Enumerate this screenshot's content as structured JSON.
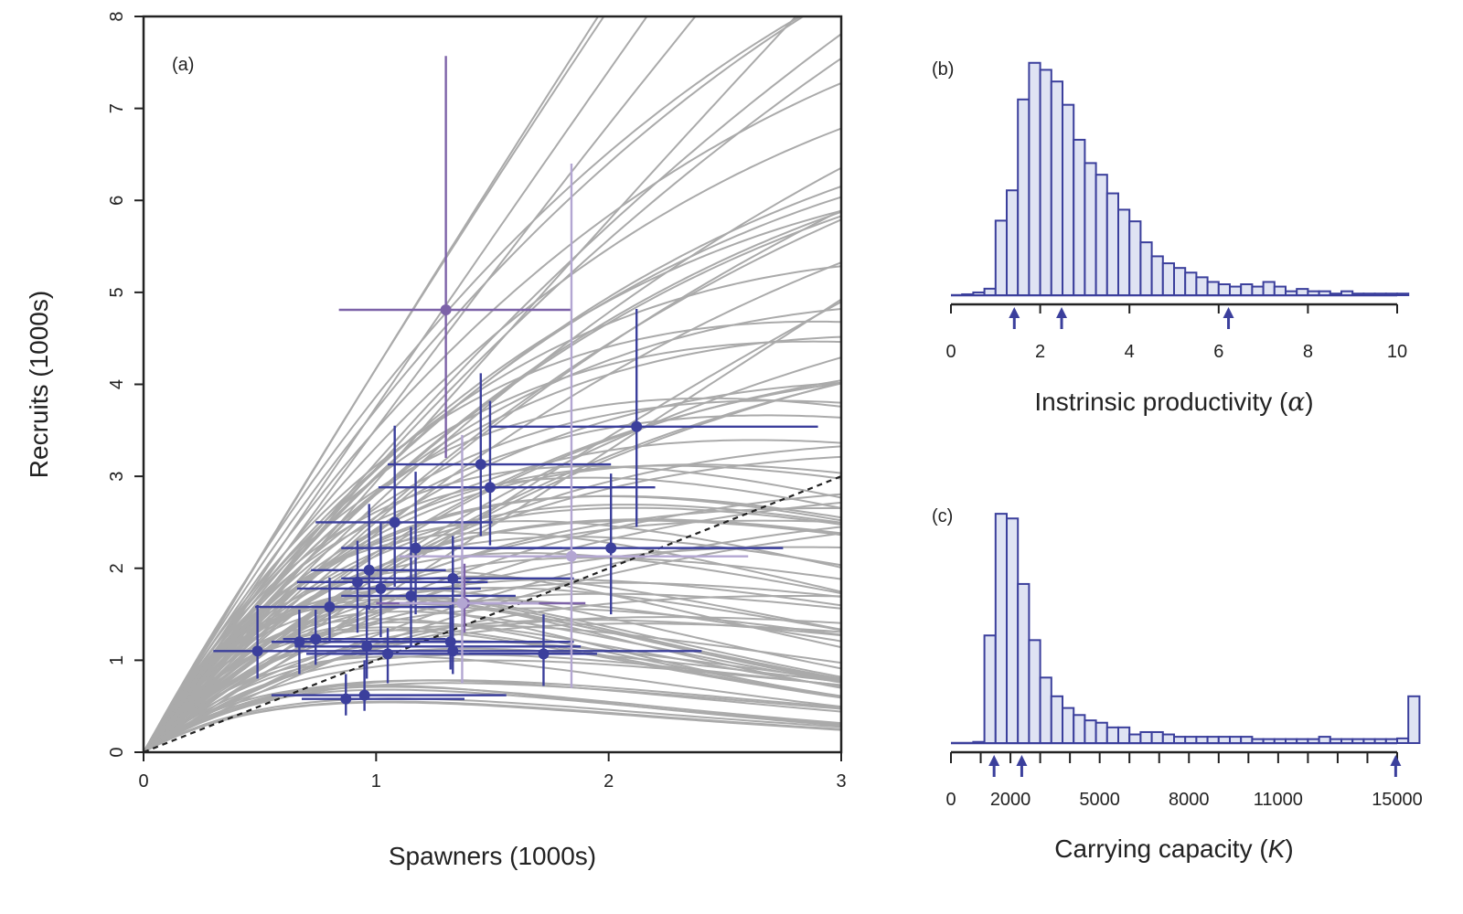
{
  "colors": {
    "curves": "#aaaaaa",
    "points": "#3b3f9c",
    "points_purple": "#7d62a8",
    "points_lilac": "#b3a6d2",
    "hist_fill": "#dfe3f3",
    "hist_stroke": "#3b3f9c",
    "reference_line": "#222222"
  },
  "chart_data": [
    {
      "type": "scatter",
      "panel_label": "(a)",
      "xlabel": "Spawners (1000s)",
      "ylabel": "Recruits (1000s)",
      "xlim": [
        0,
        3
      ],
      "ylim": [
        0,
        8
      ],
      "x_ticks": [
        "0",
        "1",
        "2",
        "3"
      ],
      "y_ticks": [
        "0",
        "1",
        "2",
        "3",
        "4",
        "5",
        "6",
        "7",
        "8"
      ],
      "reference_line": {
        "style": "dashed",
        "slope": 1
      },
      "posterior_curves": {
        "model": "Ricker",
        "count": 100,
        "alpha_range": [
          1.4,
          4.6
        ],
        "beta_range": [
          0.0,
          1.05
        ]
      },
      "series": [
        {
          "points": [
            {
              "x": 0.49,
              "y": 1.1,
              "xlo": 0.3,
              "xhi": 0.92,
              "ylo": 0.8,
              "yhi": 1.6
            },
            {
              "x": 0.67,
              "y": 1.2,
              "xlo": 0.55,
              "xhi": 1.4,
              "ylo": 0.85,
              "yhi": 1.55
            },
            {
              "x": 0.74,
              "y": 1.23,
              "xlo": 0.6,
              "xhi": 1.3,
              "ylo": 0.95,
              "yhi": 1.55
            },
            {
              "x": 0.8,
              "y": 1.58,
              "xlo": 0.48,
              "xhi": 1.32,
              "ylo": 1.2,
              "yhi": 1.9
            },
            {
              "x": 0.87,
              "y": 0.58,
              "xlo": 0.68,
              "xhi": 1.38,
              "ylo": 0.4,
              "yhi": 0.85
            },
            {
              "x": 0.92,
              "y": 1.85,
              "xlo": 0.66,
              "xhi": 1.48,
              "ylo": 1.3,
              "yhi": 2.3
            },
            {
              "x": 0.95,
              "y": 0.62,
              "xlo": 0.55,
              "xhi": 1.56,
              "ylo": 0.45,
              "yhi": 1.0
            },
            {
              "x": 0.96,
              "y": 1.15,
              "xlo": 0.65,
              "xhi": 1.88,
              "ylo": 0.8,
              "yhi": 1.6
            },
            {
              "x": 0.97,
              "y": 1.98,
              "xlo": 0.72,
              "xhi": 1.3,
              "ylo": 1.55,
              "yhi": 2.7
            },
            {
              "x": 1.02,
              "y": 1.78,
              "xlo": 0.66,
              "xhi": 1.45,
              "ylo": 1.25,
              "yhi": 2.5
            },
            {
              "x": 1.05,
              "y": 1.07,
              "xlo": 0.7,
              "xhi": 1.95,
              "ylo": 0.75,
              "yhi": 1.35
            },
            {
              "x": 1.08,
              "y": 2.5,
              "xlo": 0.74,
              "xhi": 1.5,
              "ylo": 1.8,
              "yhi": 3.55
            },
            {
              "x": 1.15,
              "y": 1.7,
              "xlo": 0.85,
              "xhi": 1.6,
              "ylo": 1.15,
              "yhi": 2.45
            },
            {
              "x": 1.17,
              "y": 2.22,
              "xlo": 0.85,
              "xhi": 1.8,
              "ylo": 1.5,
              "yhi": 3.05
            },
            {
              "x": 1.32,
              "y": 1.2,
              "xlo": 0.95,
              "xhi": 1.85,
              "ylo": 0.9,
              "yhi": 1.6
            },
            {
              "x": 1.33,
              "y": 1.1,
              "xlo": 0.9,
              "xhi": 2.4,
              "ylo": 0.85,
              "yhi": 1.45
            },
            {
              "x": 1.33,
              "y": 1.89,
              "xlo": 0.85,
              "xhi": 1.85,
              "ylo": 1.4,
              "yhi": 2.35
            },
            {
              "x": 1.45,
              "y": 3.13,
              "xlo": 1.05,
              "xhi": 2.01,
              "ylo": 2.35,
              "yhi": 4.12
            },
            {
              "x": 1.49,
              "y": 2.88,
              "xlo": 1.01,
              "xhi": 2.2,
              "ylo": 2.25,
              "yhi": 3.82
            },
            {
              "x": 1.72,
              "y": 1.07,
              "xlo": 1.4,
              "xhi": 1.9,
              "ylo": 0.72,
              "yhi": 1.5
            },
            {
              "x": 2.01,
              "y": 2.22,
              "xlo": 1.3,
              "xhi": 2.75,
              "ylo": 1.5,
              "yhi": 3.03
            },
            {
              "x": 2.12,
              "y": 3.54,
              "xlo": 1.49,
              "xhi": 2.9,
              "ylo": 2.45,
              "yhi": 4.82
            }
          ]
        },
        {
          "points": [
            {
              "x": 1.3,
              "y": 4.81,
              "xlo": 0.84,
              "xhi": 1.84,
              "ylo": 3.2,
              "yhi": 7.57
            },
            {
              "x": 1.38,
              "y": 1.62,
              "xlo": 1.0,
              "xhi": 1.9,
              "ylo": 1.3,
              "yhi": 2.05
            }
          ]
        },
        {
          "points": [
            {
              "x": 1.84,
              "y": 2.13,
              "xlo": 1.1,
              "xhi": 2.6,
              "ylo": 0.7,
              "yhi": 6.4
            },
            {
              "x": 1.37,
              "y": 1.62,
              "xlo": 1.1,
              "xhi": 1.7,
              "ylo": 0.75,
              "yhi": 3.45
            }
          ]
        }
      ]
    },
    {
      "type": "histogram",
      "panel_label": "(b)",
      "xlabel": "Instrinsic productivity (",
      "xlabel_symbol": "α",
      "xlabel_end": ")",
      "xlim": [
        0,
        10
      ],
      "x_ticks": [
        0,
        2,
        4,
        6,
        8,
        10
      ],
      "x_tick_labels": [
        "0",
        "2",
        "4",
        "6",
        "8",
        "10"
      ],
      "bin_width": 0.25,
      "bin_start": 0.25,
      "density": [
        0.004,
        0.012,
        0.028,
        0.32,
        0.45,
        0.84,
        0.997,
        0.967,
        0.917,
        0.817,
        0.667,
        0.567,
        0.517,
        0.437,
        0.367,
        0.317,
        0.227,
        0.167,
        0.137,
        0.117,
        0.097,
        0.077,
        0.057,
        0.047,
        0.037,
        0.047,
        0.037,
        0.057,
        0.037,
        0.017,
        0.027,
        0.017,
        0.017,
        0.007,
        0.017,
        0.007,
        0.007,
        0.007,
        0.007,
        0.007
      ],
      "arrows": [
        1.42,
        2.48,
        6.22
      ]
    },
    {
      "type": "histogram",
      "panel_label": "(c)",
      "xlabel": "Carrying capacity (",
      "xlabel_symbol": "K",
      "xlabel_end": ")",
      "xlim": [
        0,
        15000
      ],
      "x_ticks": [
        0,
        1000,
        2000,
        3000,
        4000,
        5000,
        6000,
        7000,
        8000,
        9000,
        10000,
        11000,
        12000,
        13000,
        14000,
        15000
      ],
      "x_tick_labels": [
        "0",
        "",
        "2000",
        "",
        "",
        "5000",
        "",
        "",
        "8000",
        "",
        "",
        "11000",
        "",
        "",
        "",
        "15000"
      ],
      "bin_width": 375,
      "bin_start": 750,
      "density": [
        0.005,
        0.46,
        0.98,
        0.96,
        0.68,
        0.44,
        0.28,
        0.2,
        0.15,
        0.12,
        0.097,
        0.087,
        0.067,
        0.067,
        0.037,
        0.047,
        0.047,
        0.037,
        0.027,
        0.027,
        0.027,
        0.027,
        0.027,
        0.027,
        0.027,
        0.017,
        0.017,
        0.017,
        0.017,
        0.017,
        0.017,
        0.027,
        0.017,
        0.017,
        0.017,
        0.017,
        0.017,
        0.017,
        0.02,
        0.2
      ],
      "arrows": [
        1450,
        2380,
        14950
      ]
    }
  ]
}
